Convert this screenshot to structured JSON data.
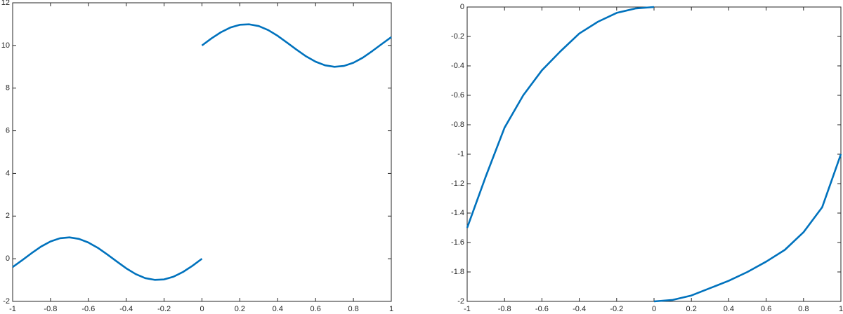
{
  "chart_data": [
    {
      "type": "line",
      "color": "#0072bd",
      "x": [
        -1,
        -0.95,
        -0.9,
        -0.85,
        -0.8,
        -0.75,
        -0.7,
        -0.65,
        -0.6,
        -0.55,
        -0.5,
        -0.45,
        -0.4,
        -0.35,
        -0.3,
        -0.25,
        -0.2,
        -0.15,
        -0.1,
        -0.05,
        0,
        0,
        0,
        0.05,
        0.1,
        0.15,
        0.2,
        0.25,
        0.3,
        0.35,
        0.4,
        0.45,
        0.5,
        0.55,
        0.6,
        0.65,
        0.7,
        0.75,
        0.8,
        0.85,
        0.9,
        0.95,
        1
      ],
      "values": [
        -0.39,
        -0.07,
        0.26,
        0.57,
        0.81,
        0.96,
        1.0,
        0.93,
        0.76,
        0.51,
        0.2,
        -0.13,
        -0.45,
        -0.72,
        -0.91,
        -0.99,
        -0.97,
        -0.84,
        -0.62,
        -0.33,
        0,
        null,
        10,
        10.33,
        10.62,
        10.84,
        10.97,
        10.99,
        10.91,
        10.72,
        10.45,
        10.13,
        9.8,
        9.49,
        9.24,
        9.07,
        9.0,
        9.04,
        9.19,
        9.43,
        9.74,
        10.07,
        10.39
      ],
      "xlim": [
        -1,
        1
      ],
      "ylim": [
        -2,
        12
      ],
      "xticks": [
        -1,
        -0.8,
        -0.6,
        -0.4,
        -0.2,
        0,
        0.2,
        0.4,
        0.6,
        0.8,
        1
      ],
      "yticks": [
        -2,
        0,
        2,
        4,
        6,
        8,
        10,
        12
      ]
    },
    {
      "type": "line",
      "color": "#0072bd",
      "x": [
        -1,
        -0.9,
        -0.8,
        -0.7,
        -0.6,
        -0.5,
        -0.4,
        -0.3,
        -0.2,
        -0.1,
        0,
        0,
        0,
        0.1,
        0.2,
        0.3,
        0.4,
        0.5,
        0.6,
        0.7,
        0.8,
        0.9,
        1
      ],
      "values": [
        -1.5,
        -1.15,
        -0.82,
        -0.6,
        -0.43,
        -0.3,
        -0.18,
        -0.1,
        -0.04,
        -0.01,
        0,
        null,
        -2,
        -1.99,
        -1.96,
        -1.91,
        -1.86,
        -1.8,
        -1.73,
        -1.65,
        -1.53,
        -1.36,
        -1
      ],
      "xlim": [
        -1,
        1
      ],
      "ylim": [
        -2,
        0
      ],
      "xticks": [
        -1,
        -0.8,
        -0.6,
        -0.4,
        -0.2,
        0,
        0.2,
        0.4,
        0.6,
        0.8,
        1
      ],
      "yticks": [
        -2,
        -1.8,
        -1.6,
        -1.4,
        -1.2,
        -1,
        -0.8,
        -0.6,
        -0.4,
        -0.2,
        0
      ]
    }
  ]
}
